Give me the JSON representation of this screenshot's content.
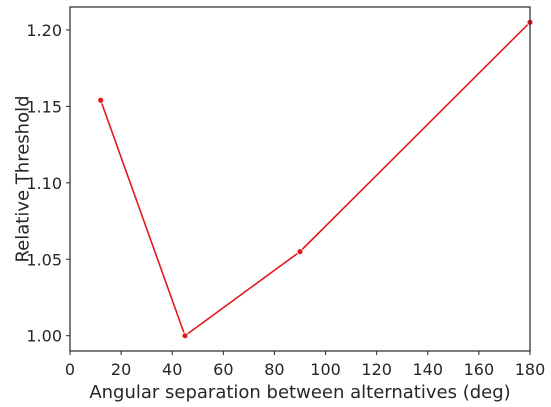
{
  "chart_data": {
    "type": "line",
    "xlabel": "Angular separation between alternatives (deg)",
    "ylabel": "Relative Threshold",
    "xlim": [
      0,
      180
    ],
    "ylim": [
      0.99,
      1.215
    ],
    "xticks": [
      0,
      20,
      40,
      60,
      80,
      100,
      120,
      140,
      160,
      180
    ],
    "yticks": [
      1.0,
      1.05,
      1.1,
      1.15,
      1.2
    ],
    "xtick_labels": [
      "0",
      "20",
      "40",
      "60",
      "80",
      "100",
      "120",
      "140",
      "160",
      "180"
    ],
    "ytick_labels": [
      "1.00",
      "1.05",
      "1.10",
      "1.15",
      "1.20"
    ],
    "grid": false,
    "series": [
      {
        "x": [
          12,
          45,
          90,
          180
        ],
        "y": [
          1.154,
          1.0,
          1.055,
          1.205
        ],
        "color": "#e31a1c",
        "marker": "circle"
      }
    ]
  }
}
